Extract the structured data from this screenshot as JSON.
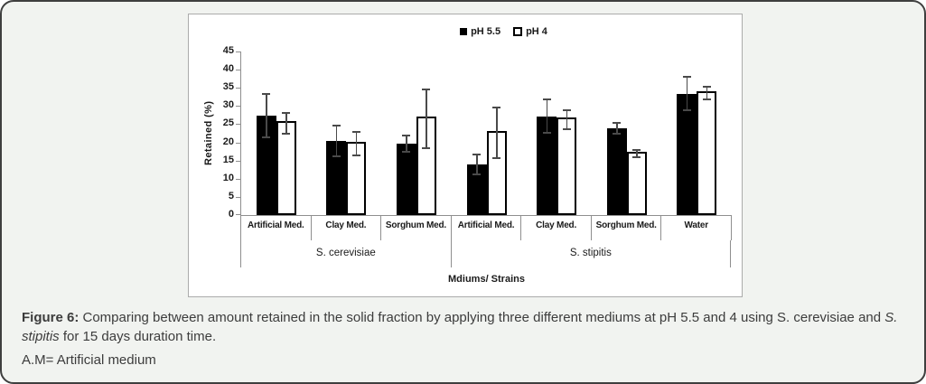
{
  "figure": {
    "caption_label": "Figure 6:",
    "caption_before_italic": " Comparing between amount retained in the solid fraction by applying three different mediums at pH 5.5 and 4 using S. cerevisiae and ",
    "caption_italic": "S. stipitis",
    "caption_after_italic": " for 15 days duration time.",
    "note": "A.M= Artificial medium"
  },
  "chart_data": {
    "type": "bar",
    "title": "",
    "xlabel": "Mdiums/ Strains",
    "ylabel": "Retained (%)",
    "ylim": [
      0,
      45
    ],
    "yticks": [
      0,
      5,
      10,
      15,
      20,
      25,
      30,
      35,
      40,
      45
    ],
    "grid": false,
    "legend_position": "top-center",
    "categories": [
      "Artificial Med.",
      "Clay Med.",
      "Sorghum Med.",
      "Artificial Med.",
      "Clay Med.",
      "Sorghum Med.",
      "Water"
    ],
    "category_groups": [
      {
        "label": "S. cerevisiae",
        "span": 3
      },
      {
        "label": "S. stipitis",
        "span": 4
      }
    ],
    "series": [
      {
        "name": "pH 5.5",
        "fill": "#000000",
        "border": "#000000",
        "values": [
          27.4,
          20.4,
          19.7,
          13.9,
          27.2,
          23.9,
          33.4
        ],
        "errors": [
          6.2,
          4.5,
          2.5,
          3.0,
          4.9,
          1.8,
          4.9
        ]
      },
      {
        "name": "pH 4",
        "fill": "#ffffff",
        "border": "#000000",
        "values": [
          25.3,
          19.6,
          26.5,
          22.6,
          26.3,
          16.9,
          33.5
        ],
        "errors": [
          3.1,
          3.4,
          8.4,
          7.3,
          2.9,
          1.2,
          2.0
        ]
      }
    ]
  },
  "colors": {
    "card_background": "#f1f3f0",
    "card_border": "#3f3f3f",
    "panel_background": "#ffffff",
    "panel_border": "#ababab",
    "axis_line": "#8f8f8f",
    "error_bar": "#4a4a4a",
    "bar_solid": "#000000",
    "bar_open_fill": "#ffffff",
    "text": "#1a1a1a"
  }
}
